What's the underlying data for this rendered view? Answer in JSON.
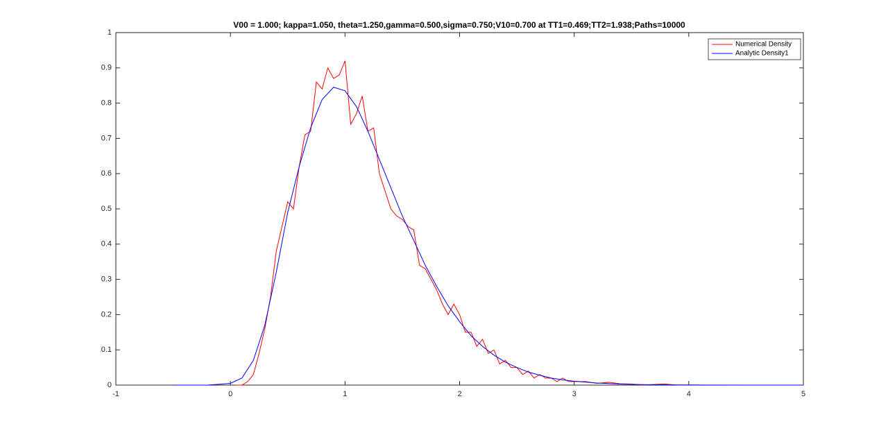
{
  "chart_data": {
    "type": "line",
    "title": "V00 = 1.000; kappa=1.050, theta=1.250,gamma=0.500,sigma=0.750;V10=0.700 at TT1=0.469;TT2=1.938;Paths=10000",
    "xlim": [
      -1,
      5
    ],
    "ylim": [
      0,
      1
    ],
    "xticks": [
      -1,
      0,
      1,
      2,
      3,
      4,
      5
    ],
    "yticks": [
      0,
      0.1,
      0.2,
      0.3,
      0.4,
      0.5,
      0.6,
      0.7,
      0.8,
      0.9,
      1
    ],
    "grid": false,
    "legend": "top-right",
    "series": [
      {
        "name": "Numerical Density",
        "color": "#ff0000",
        "x": [
          0.05,
          0.1,
          0.15,
          0.2,
          0.25,
          0.3,
          0.35,
          0.4,
          0.45,
          0.5,
          0.55,
          0.6,
          0.65,
          0.7,
          0.75,
          0.8,
          0.85,
          0.9,
          0.95,
          1.0,
          1.05,
          1.1,
          1.15,
          1.2,
          1.25,
          1.3,
          1.35,
          1.4,
          1.45,
          1.5,
          1.55,
          1.6,
          1.65,
          1.7,
          1.75,
          1.8,
          1.85,
          1.9,
          1.95,
          2.0,
          2.05,
          2.1,
          2.15,
          2.2,
          2.25,
          2.3,
          2.35,
          2.4,
          2.45,
          2.5,
          2.55,
          2.6,
          2.65,
          2.7,
          2.75,
          2.8,
          2.85,
          2.9,
          2.95,
          3.0,
          3.1,
          3.2,
          3.3,
          3.4,
          3.5,
          3.6,
          3.7,
          3.8,
          3.9,
          4.0
        ],
        "values": [
          0,
          0,
          0.01,
          0.03,
          0.09,
          0.16,
          0.25,
          0.38,
          0.45,
          0.52,
          0.5,
          0.62,
          0.71,
          0.72,
          0.86,
          0.84,
          0.9,
          0.87,
          0.88,
          0.92,
          0.74,
          0.77,
          0.82,
          0.72,
          0.73,
          0.6,
          0.55,
          0.5,
          0.48,
          0.47,
          0.45,
          0.44,
          0.34,
          0.33,
          0.3,
          0.27,
          0.23,
          0.2,
          0.23,
          0.2,
          0.15,
          0.15,
          0.11,
          0.13,
          0.09,
          0.1,
          0.06,
          0.07,
          0.05,
          0.05,
          0.03,
          0.04,
          0.02,
          0.03,
          0.02,
          0.02,
          0.01,
          0.02,
          0.01,
          0.01,
          0.01,
          0.005,
          0.008,
          0.004,
          0.003,
          0,
          0.002,
          0.003,
          0,
          0
        ]
      },
      {
        "name": "Analytic Density1",
        "color": "#0000ff",
        "x": [
          -0.5,
          -0.2,
          0,
          0.1,
          0.2,
          0.3,
          0.4,
          0.5,
          0.6,
          0.7,
          0.8,
          0.9,
          1.0,
          1.1,
          1.2,
          1.3,
          1.4,
          1.5,
          1.6,
          1.7,
          1.8,
          1.9,
          2.0,
          2.1,
          2.2,
          2.3,
          2.4,
          2.5,
          2.6,
          2.7,
          2.8,
          2.9,
          3.0,
          3.2,
          3.4,
          3.6,
          3.8,
          4.0,
          4.5,
          5.0
        ],
        "values": [
          0,
          0,
          0.005,
          0.02,
          0.07,
          0.17,
          0.32,
          0.49,
          0.62,
          0.73,
          0.81,
          0.845,
          0.835,
          0.79,
          0.72,
          0.64,
          0.56,
          0.48,
          0.41,
          0.34,
          0.28,
          0.225,
          0.18,
          0.14,
          0.11,
          0.085,
          0.065,
          0.05,
          0.037,
          0.028,
          0.02,
          0.015,
          0.011,
          0.006,
          0.003,
          0.0015,
          0.0008,
          0.0004,
          0.0001,
          0
        ]
      }
    ]
  }
}
